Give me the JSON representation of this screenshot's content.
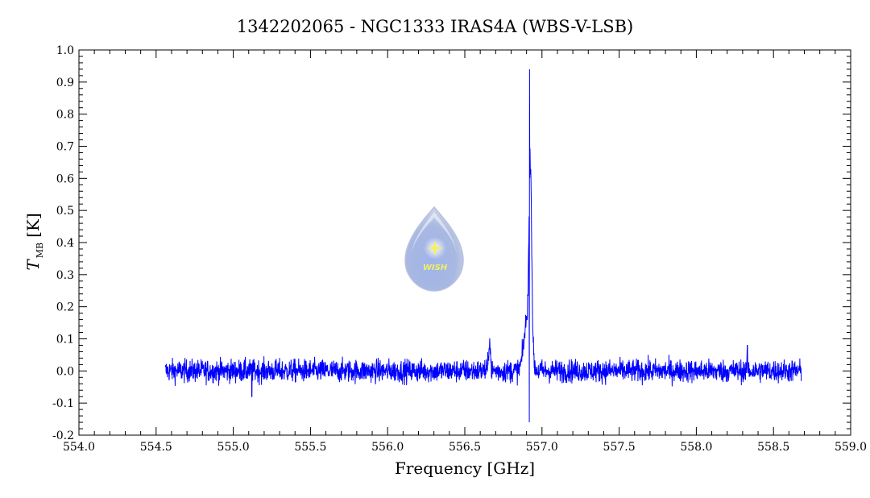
{
  "chart_data": {
    "type": "line",
    "title": "1342202065 - NGC1333 IRAS4A (WBS-V-LSB)",
    "xlabel": "Frequency [GHz]",
    "ylabel": {
      "symbol": "T",
      "subscript": "MB",
      "unit": "[K]"
    },
    "xlim": [
      554.0,
      559.0
    ],
    "ylim": [
      -0.2,
      1.0
    ],
    "x_ticks": [
      "554.0",
      "554.5",
      "555.0",
      "555.5",
      "556.0",
      "556.5",
      "557.0",
      "557.5",
      "558.0",
      "558.5",
      "559.0"
    ],
    "y_ticks": [
      "-0.2",
      "-0.1",
      "0.0",
      "0.1",
      "0.2",
      "0.3",
      "0.4",
      "0.5",
      "0.6",
      "0.7",
      "0.8",
      "0.9",
      "1.0"
    ],
    "grid": false,
    "series": [
      {
        "color": "#0000ff",
        "x_range": [
          554.56,
          558.68
        ],
        "baseline": 0.0,
        "noise_rms": 0.018,
        "features": [
          {
            "x": 556.66,
            "peak": 0.1
          },
          {
            "x": 556.925,
            "peak": 0.66
          },
          {
            "x": 556.92,
            "peak": 0.94
          },
          {
            "x": 556.918,
            "peak": -0.16
          },
          {
            "x": 558.33,
            "peak": 0.08
          },
          {
            "x": 555.12,
            "peak": -0.08
          }
        ]
      }
    ]
  },
  "logo": {
    "text": "WISH"
  }
}
